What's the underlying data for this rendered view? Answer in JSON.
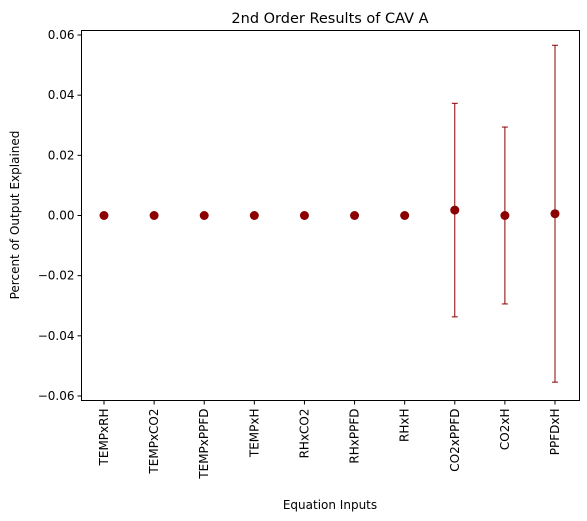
{
  "chart_data": {
    "type": "scatter",
    "title": "2nd Order Results of CAV A",
    "xlabel": "Equation Inputs",
    "ylabel": "Percent of Output Explained",
    "categories": [
      "TEMPxRH",
      "TEMPxCO2",
      "TEMPxPPFD",
      "TEMPxH",
      "RHxCO2",
      "RHxPPFD",
      "RHxH",
      "CO2xPPFD",
      "CO2xH",
      "PPFDxH"
    ],
    "values": [
      0.0,
      0.0,
      0.0,
      0.0,
      0.0,
      0.0,
      0.0,
      0.0018,
      0.0,
      0.0006
    ],
    "error": [
      0.0,
      0.0,
      0.0,
      0.0,
      0.0,
      0.0,
      0.0,
      0.0355,
      0.0294,
      0.056
    ],
    "ylim": [
      -0.0615,
      0.0615
    ],
    "yticks": [
      -0.06,
      -0.04,
      -0.02,
      0.0,
      0.02,
      0.04,
      0.06
    ],
    "ytick_labels": [
      "−0.06",
      "−0.04",
      "−0.02",
      "0.00",
      "0.02",
      "0.04",
      "0.06"
    ],
    "grid": false,
    "colors": {
      "marker": "#8b0000",
      "errorbar": "#8b0000"
    }
  }
}
